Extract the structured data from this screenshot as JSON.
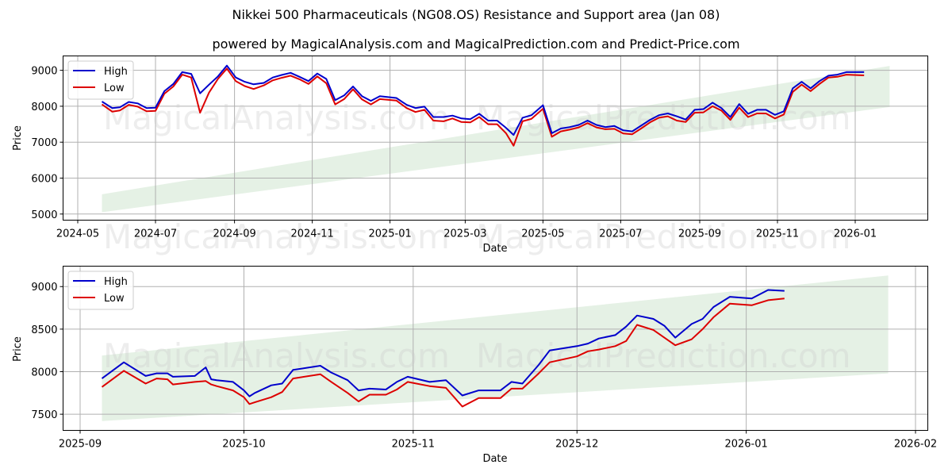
{
  "title": "Nikkei 500 Pharmaceuticals (NG08.OS) Resistance and Support area (Jan 08)",
  "subtitle": "powered by MagicalAnalysis.com and MagicalPrediction.com and Predict-Price.com",
  "watermarks": [
    "MagicalAnalysis.com",
    "MagicalPrediction.com"
  ],
  "colors": {
    "high": "#0000cc",
    "low": "#dd0000",
    "band": "#d4e8d4",
    "grid": "#b0b0b0"
  },
  "legend": {
    "high": "High",
    "low": "Low"
  },
  "chart_data": [
    {
      "type": "line",
      "title": "",
      "xlabel": "Date",
      "ylabel": "Price",
      "grid": true,
      "legend_position": "upper left",
      "x_ticks": [
        "2024-05",
        "2024-07",
        "2024-09",
        "2024-11",
        "2025-01",
        "2025-03",
        "2025-05",
        "2025-07",
        "2025-09",
        "2025-11",
        "2026-01"
      ],
      "y_ticks": [
        5000,
        6000,
        7000,
        8000,
        9000
      ],
      "ylim": [
        4830,
        9400
      ],
      "x": [
        "2024-05-20",
        "2024-05-28",
        "2024-06-03",
        "2024-06-10",
        "2024-06-17",
        "2024-06-24",
        "2024-07-01",
        "2024-07-08",
        "2024-07-15",
        "2024-07-22",
        "2024-07-29",
        "2024-08-05",
        "2024-08-12",
        "2024-08-19",
        "2024-08-26",
        "2024-09-02",
        "2024-09-09",
        "2024-09-16",
        "2024-09-24",
        "2024-10-01",
        "2024-10-08",
        "2024-10-15",
        "2024-10-22",
        "2024-10-29",
        "2024-11-05",
        "2024-11-12",
        "2024-11-19",
        "2024-11-26",
        "2024-12-03",
        "2024-12-10",
        "2024-12-17",
        "2024-12-24",
        "2025-01-06",
        "2025-01-14",
        "2025-01-21",
        "2025-01-28",
        "2025-02-04",
        "2025-02-12",
        "2025-02-19",
        "2025-02-26",
        "2025-03-05",
        "2025-03-12",
        "2025-03-19",
        "2025-03-26",
        "2025-04-02",
        "2025-04-08",
        "2025-04-15",
        "2025-04-22",
        "2025-05-01",
        "2025-05-08",
        "2025-05-15",
        "2025-05-22",
        "2025-05-29",
        "2025-06-05",
        "2025-06-12",
        "2025-06-19",
        "2025-06-26",
        "2025-07-03",
        "2025-07-10",
        "2025-07-17",
        "2025-07-24",
        "2025-07-31",
        "2025-08-07",
        "2025-08-14",
        "2025-08-21",
        "2025-08-28",
        "2025-09-04",
        "2025-09-11",
        "2025-09-18",
        "2025-09-25",
        "2025-10-02",
        "2025-10-09",
        "2025-10-16",
        "2025-10-23",
        "2025-10-30",
        "2025-11-06",
        "2025-11-13",
        "2025-11-20",
        "2025-11-27",
        "2025-12-04",
        "2025-12-11",
        "2025-12-18",
        "2025-12-25",
        "2026-01-08"
      ],
      "series": [
        {
          "name": "High",
          "values": [
            8130,
            7950,
            7970,
            8120,
            8080,
            7950,
            7960,
            8420,
            8620,
            8950,
            8900,
            8360,
            8600,
            8830,
            9130,
            8800,
            8680,
            8610,
            8650,
            8800,
            8870,
            8930,
            8820,
            8700,
            8910,
            8760,
            8170,
            8300,
            8550,
            8280,
            8150,
            8280,
            8230,
            8040,
            7950,
            7990,
            7700,
            7700,
            7740,
            7660,
            7640,
            7790,
            7600,
            7600,
            7400,
            7200,
            7680,
            7750,
            8030,
            7250,
            7380,
            7420,
            7480,
            7600,
            7480,
            7420,
            7450,
            7330,
            7300,
            7460,
            7620,
            7750,
            7800,
            7720,
            7630,
            7900,
            7920,
            8100,
            7950,
            7700,
            8060,
            7790,
            7900,
            7900,
            7760,
            7860,
            8500,
            8680,
            8500,
            8700,
            8850,
            8880,
            8950,
            8950
          ]
        },
        {
          "name": "Low",
          "values": [
            8050,
            7850,
            7880,
            8040,
            7990,
            7860,
            7870,
            8350,
            8550,
            8880,
            8800,
            7820,
            8380,
            8760,
            9050,
            8700,
            8560,
            8480,
            8580,
            8720,
            8790,
            8850,
            8750,
            8620,
            8830,
            8640,
            8050,
            8200,
            8470,
            8190,
            8050,
            8200,
            8160,
            7950,
            7840,
            7900,
            7600,
            7580,
            7660,
            7560,
            7550,
            7700,
            7500,
            7500,
            7250,
            6900,
            7580,
            7650,
            7930,
            7150,
            7300,
            7350,
            7410,
            7530,
            7410,
            7360,
            7370,
            7240,
            7220,
            7380,
            7550,
            7680,
            7720,
            7600,
            7560,
            7820,
            7830,
            8000,
            7880,
            7620,
            7960,
            7700,
            7800,
            7800,
            7660,
            7770,
            8400,
            8600,
            8420,
            8620,
            8800,
            8820,
            8880,
            8860
          ]
        },
        {
          "name": "Support/Resistance band",
          "type": "area",
          "x": [
            "2024-05-20",
            "2026-01-28"
          ],
          "upper": [
            5550,
            9120
          ],
          "lower": [
            5050,
            7980
          ]
        }
      ]
    },
    {
      "type": "line",
      "title": "",
      "xlabel": "Date",
      "ylabel": "Price",
      "grid": true,
      "legend_position": "upper left",
      "x_ticks": [
        "2025-09",
        "2025-10",
        "2025-11",
        "2025-12",
        "2026-01",
        "2026-02"
      ],
      "y_ticks": [
        7500,
        8000,
        8500,
        9000
      ],
      "ylim": [
        7310,
        9240
      ],
      "x": [
        "2025-09-05",
        "2025-09-09",
        "2025-09-13",
        "2025-09-15",
        "2025-09-17",
        "2025-09-18",
        "2025-09-22",
        "2025-09-24",
        "2025-09-25",
        "2025-09-26",
        "2025-09-29",
        "2025-10-01",
        "2025-10-02",
        "2025-10-03",
        "2025-10-06",
        "2025-10-08",
        "2025-10-10",
        "2025-10-15",
        "2025-10-17",
        "2025-10-20",
        "2025-10-22",
        "2025-10-24",
        "2025-10-27",
        "2025-10-29",
        "2025-10-31",
        "2025-11-04",
        "2025-11-07",
        "2025-11-10",
        "2025-11-13",
        "2025-11-17",
        "2025-11-19",
        "2025-11-21",
        "2025-11-24",
        "2025-11-26",
        "2025-12-01",
        "2025-12-03",
        "2025-12-05",
        "2025-12-08",
        "2025-12-10",
        "2025-12-12",
        "2025-12-15",
        "2025-12-17",
        "2025-12-19",
        "2025-12-22",
        "2025-12-24",
        "2025-12-26",
        "2025-12-29",
        "2026-01-02",
        "2026-01-05",
        "2026-01-08"
      ],
      "series": [
        {
          "name": "High",
          "values": [
            7920,
            8110,
            7950,
            7980,
            7980,
            7940,
            7950,
            8050,
            7910,
            7900,
            7880,
            7780,
            7710,
            7750,
            7840,
            7860,
            8020,
            8070,
            7990,
            7900,
            7780,
            7800,
            7790,
            7880,
            7940,
            7880,
            7900,
            7720,
            7780,
            7780,
            7880,
            7860,
            8080,
            8250,
            8300,
            8330,
            8390,
            8430,
            8530,
            8660,
            8620,
            8540,
            8400,
            8560,
            8620,
            8760,
            8880,
            8860,
            8960,
            8950
          ]
        },
        {
          "name": "Low",
          "values": [
            7820,
            8010,
            7860,
            7920,
            7910,
            7850,
            7880,
            7890,
            7850,
            7830,
            7780,
            7700,
            7620,
            7640,
            7700,
            7760,
            7920,
            7970,
            7880,
            7750,
            7650,
            7730,
            7730,
            7790,
            7880,
            7830,
            7810,
            7590,
            7690,
            7690,
            7800,
            7800,
            7980,
            8110,
            8180,
            8240,
            8260,
            8300,
            8360,
            8550,
            8490,
            8400,
            8310,
            8380,
            8500,
            8640,
            8800,
            8780,
            8840,
            8860
          ]
        },
        {
          "name": "Support/Resistance band",
          "type": "area",
          "x": [
            "2025-09-05",
            "2026-01-27"
          ],
          "upper": [
            8190,
            9130
          ],
          "lower": [
            7420,
            7980
          ]
        }
      ]
    }
  ]
}
